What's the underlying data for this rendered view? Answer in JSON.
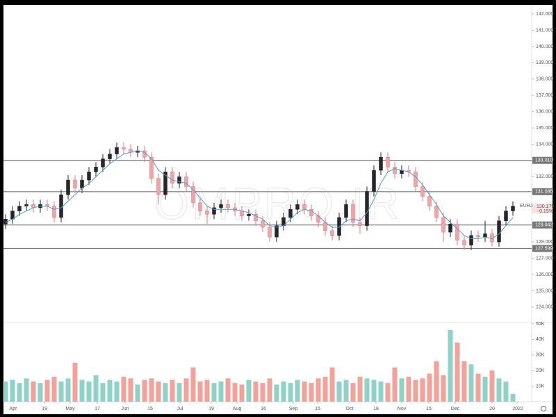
{
  "chart_data": {
    "type": "candlestick",
    "watermark": "OMPRO.IR",
    "open": [
      129.1,
      129.4,
      129.9,
      130.2,
      130.3,
      130.1,
      130.3,
      130.2,
      129.5,
      130.9,
      131.8,
      131.3,
      131.8,
      132.3,
      132.6,
      133.1,
      133.4,
      133.8,
      133.7,
      133.5,
      133.6,
      133.2,
      131.9,
      130.9,
      132.3,
      131.6,
      132.0,
      131.4,
      130.4,
      129.9,
      129.7,
      130.1,
      130.3,
      130.1,
      129.9,
      129.6,
      129.7,
      129.3,
      128.9,
      128.3,
      129.0,
      129.5,
      130.0,
      130.3,
      130.0,
      129.6,
      129.2,
      128.7,
      128.4,
      129.5,
      130.3,
      129.2,
      129.0,
      131.1,
      132.4,
      133.2,
      132.6,
      132.2,
      132.4,
      132.3,
      131.4,
      130.8,
      130.2,
      129.5,
      128.6,
      129.1,
      128.1,
      127.8,
      128.4,
      128.3,
      128.5,
      128.0,
      129.3,
      129.9
    ],
    "high": [
      129.7,
      130.2,
      130.5,
      130.6,
      130.6,
      130.6,
      130.6,
      130.5,
      131.2,
      132.1,
      132.1,
      132.1,
      132.6,
      132.9,
      133.4,
      133.7,
      134.1,
      134.1,
      134.0,
      133.9,
      133.9,
      133.5,
      132.2,
      132.6,
      132.6,
      132.3,
      132.3,
      131.7,
      130.7,
      130.2,
      130.4,
      130.6,
      130.6,
      130.4,
      130.2,
      130.0,
      130.0,
      129.6,
      129.2,
      129.3,
      129.8,
      130.3,
      130.6,
      130.6,
      130.3,
      129.9,
      129.5,
      129.0,
      129.8,
      130.6,
      130.6,
      129.5,
      131.4,
      132.7,
      133.5,
      133.5,
      132.9,
      132.7,
      132.7,
      132.6,
      131.7,
      131.1,
      130.5,
      129.8,
      129.4,
      129.4,
      128.4,
      128.7,
      128.7,
      129.3,
      128.8,
      129.6,
      130.2,
      130.5
    ],
    "low": [
      128.8,
      129.1,
      129.6,
      129.9,
      129.8,
      129.8,
      129.9,
      129.2,
      129.2,
      130.6,
      131.0,
      131.0,
      131.5,
      132.0,
      132.3,
      132.8,
      133.1,
      133.4,
      133.2,
      133.2,
      132.9,
      131.6,
      130.3,
      130.6,
      131.3,
      131.3,
      131.1,
      130.1,
      129.6,
      129.1,
      129.4,
      129.8,
      129.8,
      129.6,
      129.3,
      129.3,
      129.0,
      128.6,
      128.0,
      128.0,
      128.7,
      129.2,
      129.7,
      129.7,
      129.3,
      128.9,
      128.4,
      128.1,
      128.1,
      129.2,
      128.9,
      128.5,
      128.7,
      130.8,
      132.1,
      132.3,
      131.9,
      131.9,
      132.0,
      131.1,
      130.5,
      129.9,
      129.2,
      128.0,
      128.3,
      127.8,
      127.5,
      127.5,
      128.0,
      128.0,
      127.7,
      127.7,
      129.0,
      129.6
    ],
    "close": [
      129.4,
      129.9,
      130.2,
      130.3,
      130.1,
      130.3,
      130.2,
      129.5,
      130.9,
      131.8,
      131.3,
      131.8,
      132.3,
      132.6,
      133.1,
      133.4,
      133.8,
      133.7,
      133.5,
      133.6,
      133.2,
      131.9,
      130.9,
      132.3,
      131.6,
      132.0,
      131.4,
      130.4,
      129.9,
      129.7,
      130.1,
      130.3,
      130.1,
      129.9,
      129.6,
      129.7,
      129.3,
      128.9,
      128.3,
      129.0,
      129.5,
      130.0,
      130.3,
      130.0,
      129.6,
      129.2,
      128.7,
      128.4,
      129.5,
      130.3,
      129.2,
      129.0,
      131.1,
      132.4,
      133.2,
      132.6,
      132.2,
      132.4,
      132.3,
      131.4,
      130.8,
      130.2,
      129.5,
      128.6,
      129.1,
      128.1,
      127.8,
      128.4,
      128.3,
      128.5,
      128.0,
      129.3,
      129.9,
      130.2
    ],
    "ma": [
      129.2,
      129.4,
      129.7,
      129.9,
      130.1,
      130.2,
      130.2,
      130.0,
      130.1,
      130.5,
      130.9,
      131.3,
      131.6,
      132.0,
      132.4,
      132.8,
      133.1,
      133.4,
      133.5,
      133.6,
      133.5,
      133.1,
      132.4,
      132.1,
      131.8,
      131.7,
      131.6,
      131.2,
      130.7,
      130.2,
      130.0,
      130.0,
      130.0,
      130.0,
      129.9,
      129.8,
      129.6,
      129.4,
      129.0,
      128.9,
      129.0,
      129.4,
      129.8,
      130.0,
      129.9,
      129.6,
      129.2,
      128.9,
      128.9,
      129.3,
      129.4,
      129.3,
      129.8,
      130.6,
      131.6,
      132.3,
      132.5,
      132.4,
      132.3,
      132.0,
      131.5,
      130.9,
      130.3,
      129.6,
      129.2,
      128.8,
      128.4,
      128.2,
      128.2,
      128.3,
      128.2,
      128.5,
      129.0,
      129.5
    ],
    "volume": [
      13000,
      14000,
      12000,
      15000,
      13000,
      12000,
      14000,
      16000,
      13000,
      15000,
      25000,
      14000,
      13000,
      17000,
      12000,
      14000,
      13000,
      16000,
      15000,
      11000,
      14000,
      15000,
      13000,
      12000,
      14000,
      12000,
      15000,
      22000,
      13000,
      14000,
      12000,
      13000,
      15000,
      12000,
      11000,
      14000,
      13000,
      12000,
      15000,
      11000,
      13000,
      12000,
      14000,
      13000,
      12000,
      15000,
      16000,
      22000,
      13000,
      14000,
      12000,
      16000,
      15000,
      14000,
      13000,
      12000,
      22000,
      15000,
      16000,
      14000,
      15000,
      18000,
      26000,
      17000,
      46000,
      38000,
      26000,
      24000,
      18000,
      16000,
      20000,
      15000,
      13000,
      5000
    ],
    "up_color": "#26262a",
    "down_color": "#f3a3a3",
    "ma_color": "#4a9fd8",
    "vol_up_color": "#8fd3c8",
    "vol_down_color": "#f4a19a",
    "ylim": [
      123.14,
      142.43
    ],
    "yticks": [
      {
        "value": 124,
        "label": "124.000"
      },
      {
        "value": 125,
        "label": "125.000"
      },
      {
        "value": 126,
        "label": "126.000"
      },
      {
        "value": 127,
        "label": "127.000"
      },
      {
        "value": 128,
        "label": "128.000"
      },
      {
        "value": 129,
        "label": "129.000"
      },
      {
        "value": 130,
        "label": "130.000"
      },
      {
        "value": 131,
        "label": "131.000"
      },
      {
        "value": 132,
        "label": "132.000"
      },
      {
        "value": 133,
        "label": "133.000"
      },
      {
        "value": 134,
        "label": "134.000"
      },
      {
        "value": 135,
        "label": "135.000"
      },
      {
        "value": 136,
        "label": "136.000"
      },
      {
        "value": 137,
        "label": "137.000"
      },
      {
        "value": 138,
        "label": "138.000"
      },
      {
        "value": 139,
        "label": "139.000"
      },
      {
        "value": 140,
        "label": "140.000"
      },
      {
        "value": 141,
        "label": "141.000"
      },
      {
        "value": 142,
        "label": "142.000"
      }
    ],
    "y2lim": [
      0,
      50000
    ],
    "y2ticks": [
      {
        "value": 10000,
        "label": "10K"
      },
      {
        "value": 20000,
        "label": "20K"
      },
      {
        "value": 30000,
        "label": "30K"
      },
      {
        "value": 40000,
        "label": "40K"
      },
      {
        "value": 50000,
        "label": "50K"
      }
    ],
    "levels": [
      {
        "value": 133.01,
        "label": "133.010"
      },
      {
        "value": 131.086,
        "label": "131.086"
      },
      {
        "value": 129.042,
        "label": "129.042"
      },
      {
        "value": 127.599,
        "label": "127.599"
      }
    ],
    "xticks": [
      {
        "value": 1.1,
        "label": "Apr"
      },
      {
        "value": 5.6,
        "label": "19"
      },
      {
        "value": 9.3,
        "label": "May"
      },
      {
        "value": 13.2,
        "label": "17"
      },
      {
        "value": 17.2,
        "label": "Jun"
      },
      {
        "value": 20.8,
        "label": "15"
      },
      {
        "value": 25.1,
        "label": "Jul"
      },
      {
        "value": 29.6,
        "label": "19"
      },
      {
        "value": 33.3,
        "label": "Aug"
      },
      {
        "value": 37.1,
        "label": "16"
      },
      {
        "value": 41.4,
        "label": "Sep"
      },
      {
        "value": 44.9,
        "label": "15"
      },
      {
        "value": 49.5,
        "label": "Oct"
      },
      {
        "value": 53.3,
        "label": "18"
      },
      {
        "value": 57,
        "label": "Nov"
      },
      {
        "value": 60.9,
        "label": "15"
      },
      {
        "value": 64.7,
        "label": "Dec"
      },
      {
        "value": 70,
        "label": "20"
      },
      {
        "value": 73.7,
        "label": "2022"
      }
    ],
    "last": {
      "symbol": "EURJPY",
      "price": 130.179,
      "change": "−0.15%"
    }
  }
}
